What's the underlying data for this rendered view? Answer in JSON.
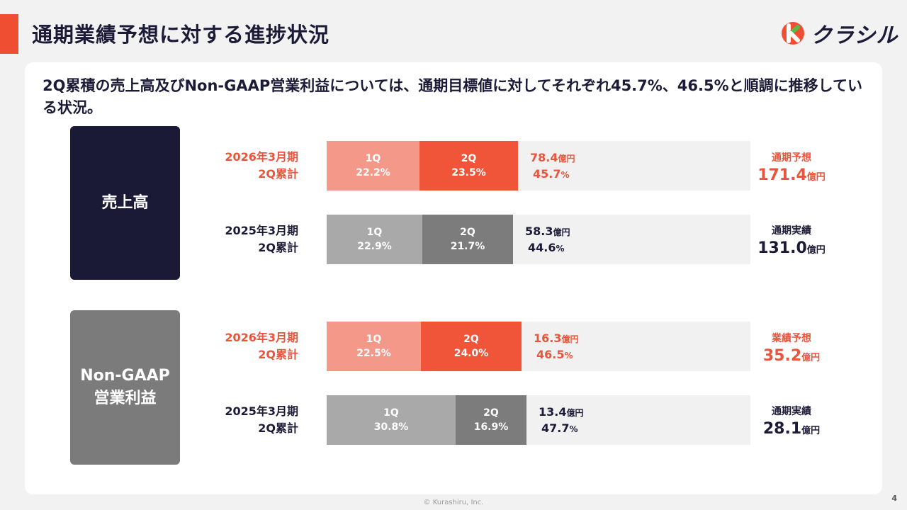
{
  "header": {
    "title": "通期業績予想に対する進捗状況",
    "logo_text": "クラシル",
    "accent": "#f04e33"
  },
  "lead": "2Q累積の売上高及びNon-GAAP営業利益については、通期目標値に対してそれぞれ45.7%、46.5%と順調に推移している状況。",
  "sections": [
    {
      "label": "売上高"
    },
    {
      "label_line1": "Non-GAAP",
      "label_line2": "営業利益"
    }
  ],
  "colors": {
    "current_q1": "#f4998a",
    "current_q2": "#f0553a",
    "prior_q1": "#a9a9a9",
    "prior_q2": "#7c7c7c",
    "remaining": "#f1f1f1",
    "highlight": "#e8553d",
    "navy": "#1b1b38"
  },
  "chart_data": [
    {
      "type": "bar",
      "section": "売上高",
      "stacked": true,
      "orientation": "horizontal",
      "rows": [
        {
          "label_line1": "2026年3月期",
          "label_line2": "2Q累計",
          "segments": [
            {
              "name": "1Q",
              "value": 22.2,
              "text": "22.2%"
            },
            {
              "name": "2Q",
              "value": 23.5,
              "text": "23.5%"
            }
          ],
          "cumulative": "78.4",
          "cumulative_unit": "億円",
          "cumulative_pct": "45.7",
          "pct_unit": "%",
          "target_label": "通期予想",
          "target_value": "171.4",
          "target_unit": "億円",
          "highlight": true
        },
        {
          "label_line1": "2025年3月期",
          "label_line2": "2Q累計",
          "segments": [
            {
              "name": "1Q",
              "value": 22.9,
              "text": "22.9%"
            },
            {
              "name": "2Q",
              "value": 21.7,
              "text": "21.7%"
            }
          ],
          "cumulative": "58.3",
          "cumulative_unit": "億円",
          "cumulative_pct": "44.6",
          "pct_unit": "%",
          "target_label": "通期実績",
          "target_value": "131.0",
          "target_unit": "億円",
          "highlight": false
        }
      ]
    },
    {
      "type": "bar",
      "section": "Non-GAAP 営業利益",
      "stacked": true,
      "orientation": "horizontal",
      "rows": [
        {
          "label_line1": "2026年3月期",
          "label_line2": "2Q累計",
          "segments": [
            {
              "name": "1Q",
              "value": 22.5,
              "text": "22.5%"
            },
            {
              "name": "2Q",
              "value": 24.0,
              "text": "24.0%"
            }
          ],
          "cumulative": "16.3",
          "cumulative_unit": "億円",
          "cumulative_pct": "46.5",
          "pct_unit": "%",
          "target_label": "業績予想",
          "target_value": "35.2",
          "target_unit": "億円",
          "highlight": true
        },
        {
          "label_line1": "2025年3月期",
          "label_line2": "2Q累計",
          "segments": [
            {
              "name": "1Q",
              "value": 30.8,
              "text": "30.8%"
            },
            {
              "name": "2Q",
              "value": 16.9,
              "text": "16.9%"
            }
          ],
          "cumulative": "13.4",
          "cumulative_unit": "億円",
          "cumulative_pct": "47.7",
          "pct_unit": "%",
          "target_label": "通期実績",
          "target_value": "28.1",
          "target_unit": "億円",
          "highlight": false
        }
      ]
    }
  ],
  "footer": {
    "copyright": "© Kurashiru, Inc.",
    "page_number": "4"
  }
}
